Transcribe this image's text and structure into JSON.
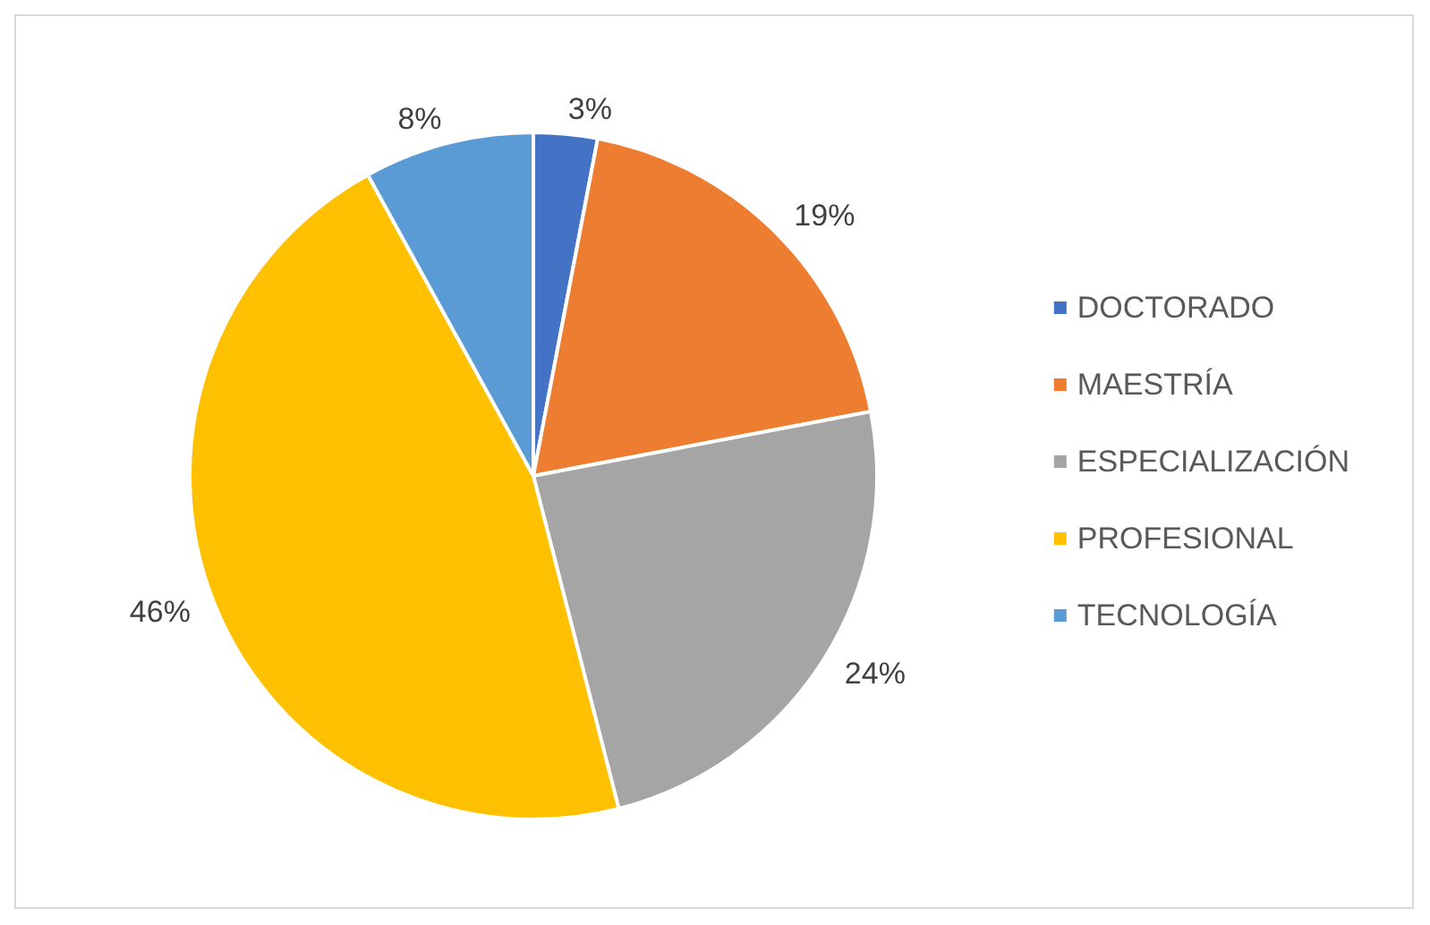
{
  "chart_data": {
    "type": "pie",
    "categories": [
      "DOCTORADO",
      "MAESTRÍA",
      "ESPECIALIZACIÓN",
      "PROFESIONAL",
      "TECNOLOGÍA"
    ],
    "values": [
      3,
      19,
      24,
      46,
      8
    ],
    "colors": [
      "#4472c4",
      "#ed7d31",
      "#a5a5a5",
      "#ffc000",
      "#5b9bd5"
    ],
    "value_labels": [
      "3%",
      "19%",
      "24%",
      "46%",
      "8%"
    ],
    "legend": "right"
  }
}
